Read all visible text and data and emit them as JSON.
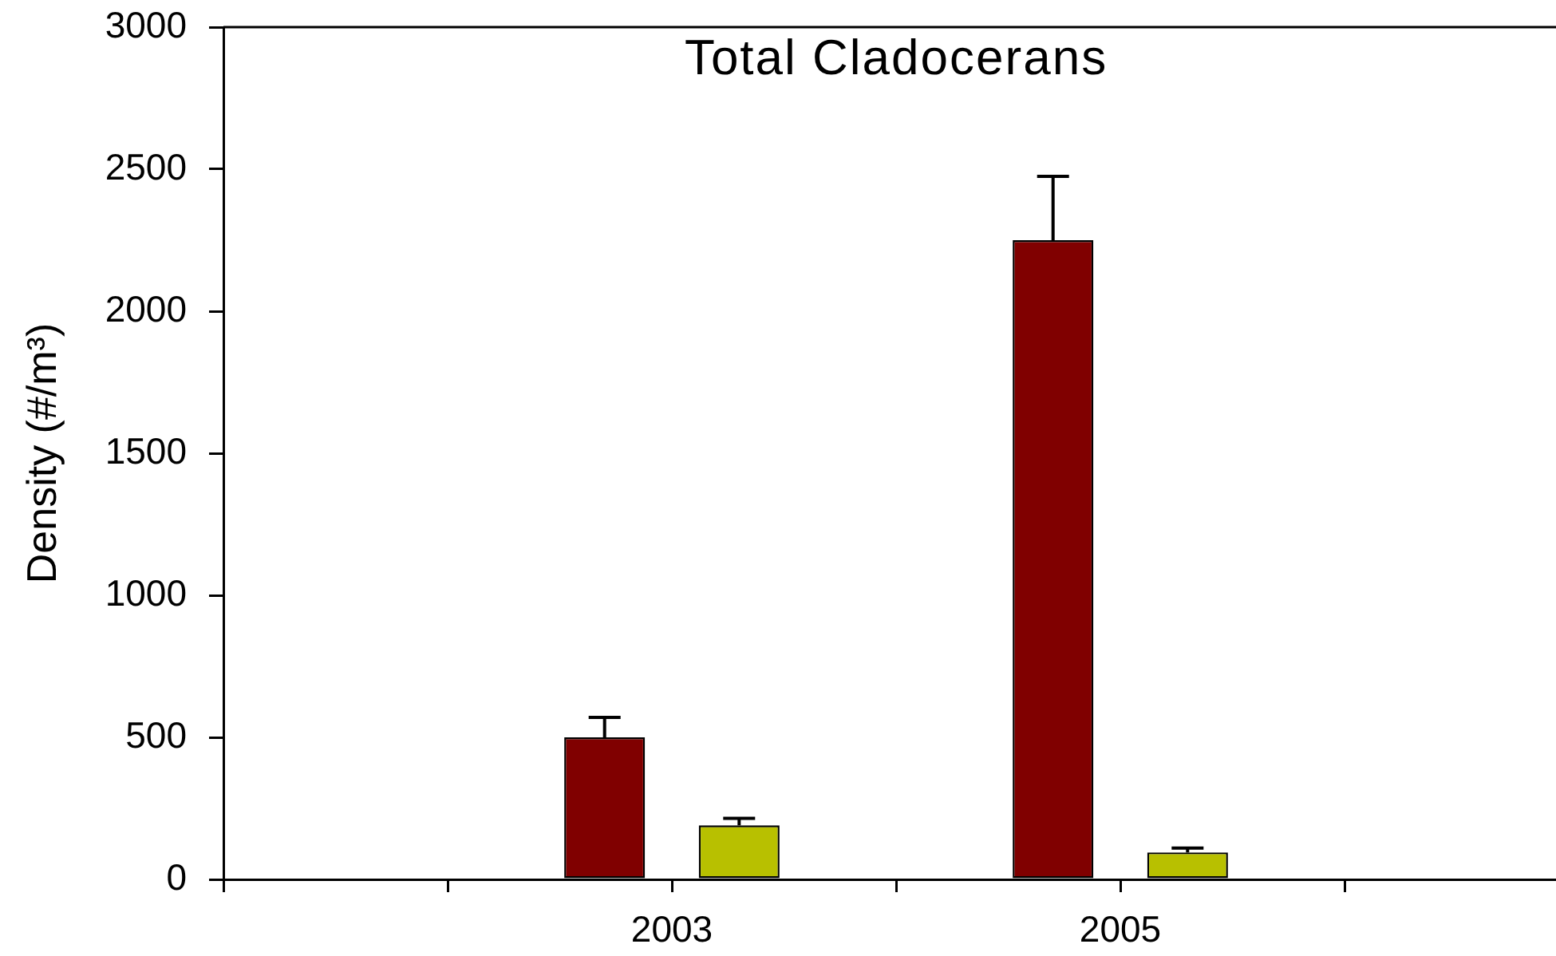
{
  "chart_data": {
    "type": "bar",
    "title": "Total Cladocerans",
    "ylabel": "Density (#/m³)",
    "categories": [
      null,
      null,
      "2003",
      null,
      "2005",
      null,
      null
    ],
    "series": [
      {
        "color": "#800000",
        "values": [
          null,
          null,
          500,
          null,
          2250,
          null,
          null
        ],
        "errors": [
          null,
          null,
          [
            500,
            570
          ],
          null,
          [
            2250,
            2475
          ],
          null,
          null
        ]
      },
      {
        "color": "#b8c000",
        "values": [
          null,
          null,
          190,
          null,
          95,
          null,
          null
        ],
        "errors": [
          null,
          null,
          [
            190,
            215
          ],
          null,
          [
            95,
            110
          ],
          null,
          null
        ]
      }
    ],
    "ylim": [
      0,
      3000
    ],
    "yticks": [
      0,
      500,
      1000,
      1500,
      2000,
      2500,
      3000
    ]
  }
}
